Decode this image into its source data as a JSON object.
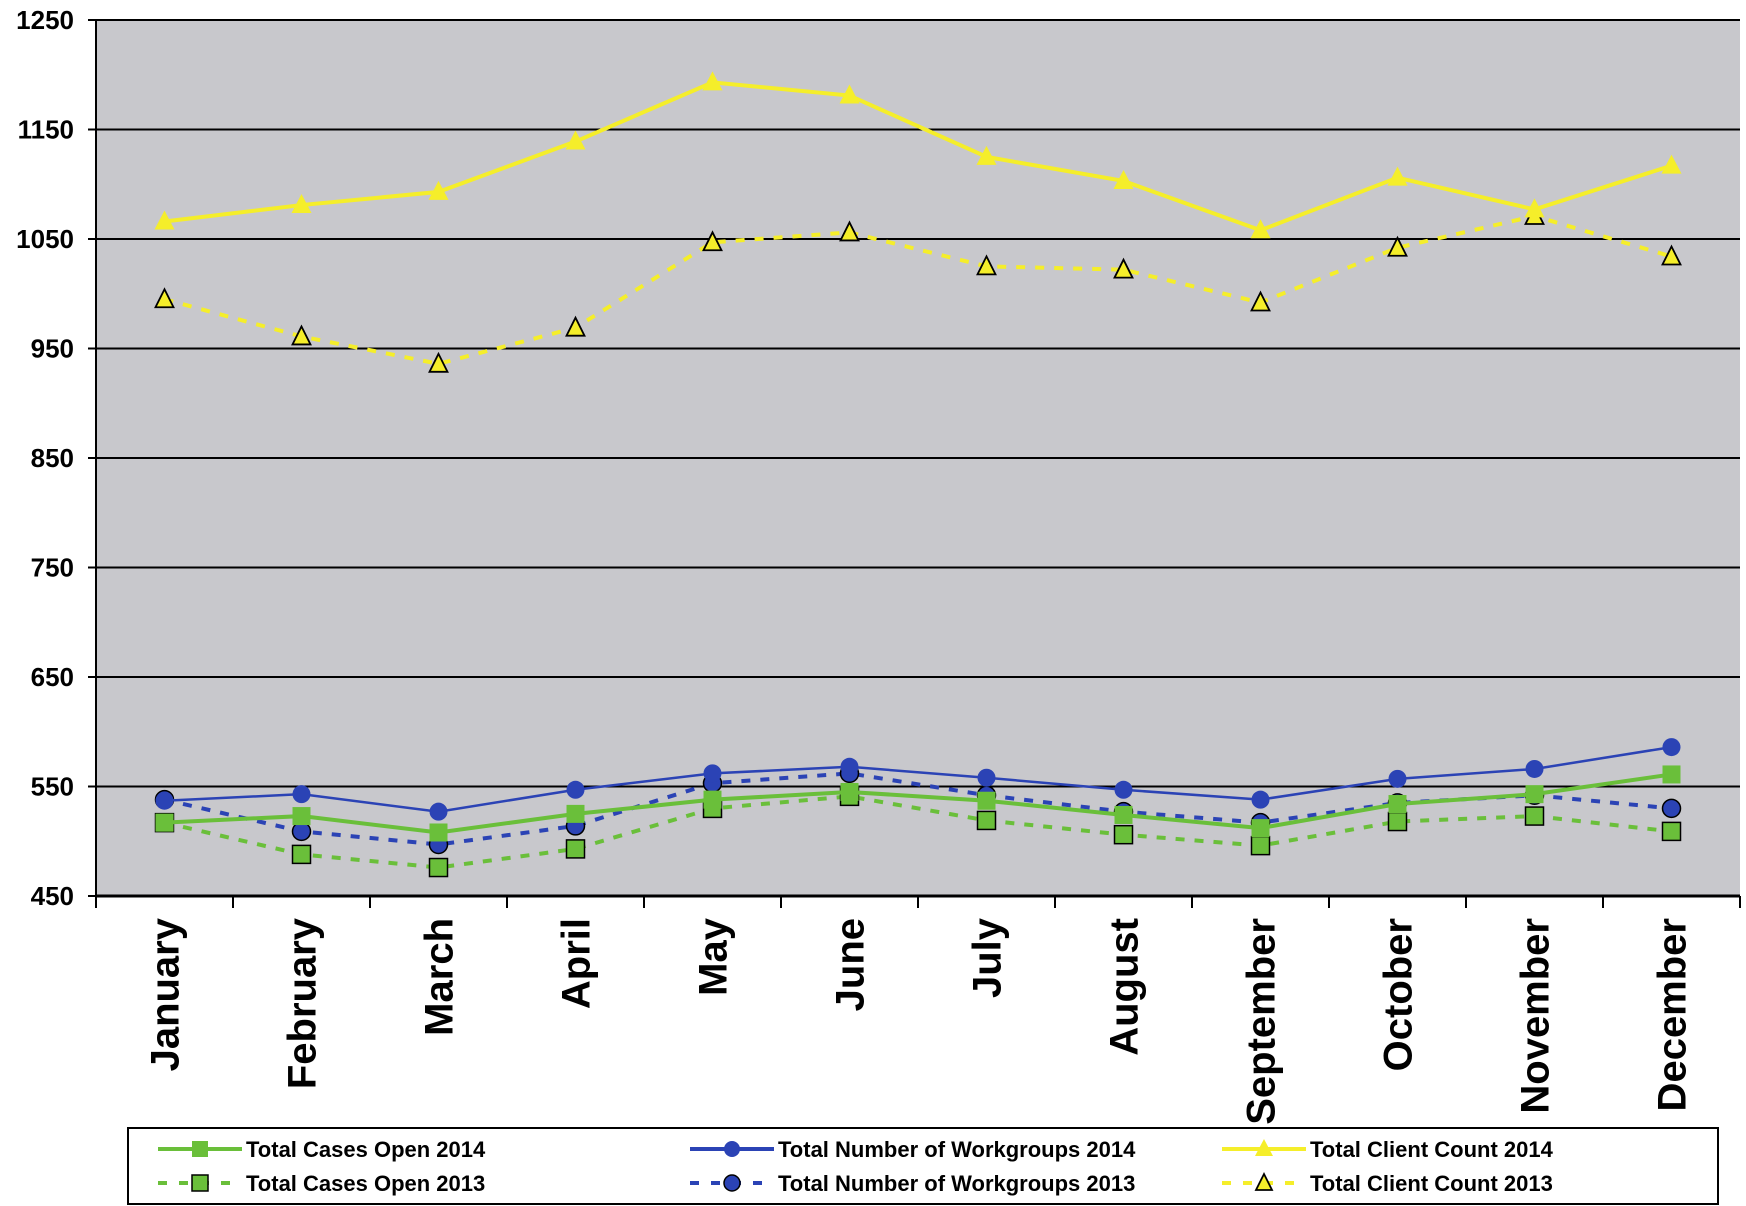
{
  "chart_data": {
    "type": "line",
    "categories": [
      "January",
      "February",
      "March",
      "April",
      "May",
      "June",
      "July",
      "August",
      "September",
      "October",
      "November",
      "December"
    ],
    "ylim": [
      450,
      1250
    ],
    "y_ticks": [
      1250,
      1150,
      1050,
      950,
      850,
      750,
      650,
      550,
      450
    ],
    "grid": "horizontal",
    "legend_position": "bottom",
    "plot_background": "#c8c8cc",
    "series": [
      {
        "name": "Total Cases Open 2014",
        "color": "#6abf3a",
        "style": "solid",
        "marker": "square",
        "values": [
          517,
          523,
          508,
          525,
          538,
          545,
          537,
          524,
          512,
          534,
          543,
          561
        ]
      },
      {
        "name": "Total Cases Open 2013",
        "color": "#6abf3a",
        "style": "dashed",
        "marker": "square-outline",
        "values": [
          517,
          488,
          476,
          493,
          530,
          541,
          519,
          506,
          496,
          518,
          523,
          509
        ]
      },
      {
        "name": "Total Number of Workgroups 2014",
        "color": "#2b43b5",
        "style": "solid",
        "marker": "circle",
        "values": [
          537,
          543,
          527,
          547,
          562,
          568,
          558,
          547,
          538,
          557,
          566,
          586
        ]
      },
      {
        "name": "Total Number of Workgroups 2013",
        "color": "#2b43b5",
        "style": "dashed",
        "marker": "circle-outline",
        "values": [
          538,
          509,
          497,
          514,
          553,
          562,
          542,
          527,
          517,
          535,
          542,
          530
        ]
      },
      {
        "name": "Total Client Count 2014",
        "color": "#f5ee2a",
        "style": "solid",
        "marker": "triangle",
        "values": [
          1066,
          1081,
          1093,
          1139,
          1193,
          1181,
          1125,
          1103,
          1058,
          1106,
          1077,
          1117
        ]
      },
      {
        "name": "Total Client Count 2013",
        "color": "#f5ee2a",
        "style": "dashed",
        "marker": "triangle-outline",
        "values": [
          995,
          961,
          936,
          969,
          1047,
          1056,
          1025,
          1022,
          992,
          1042,
          1071,
          1034
        ]
      }
    ]
  }
}
